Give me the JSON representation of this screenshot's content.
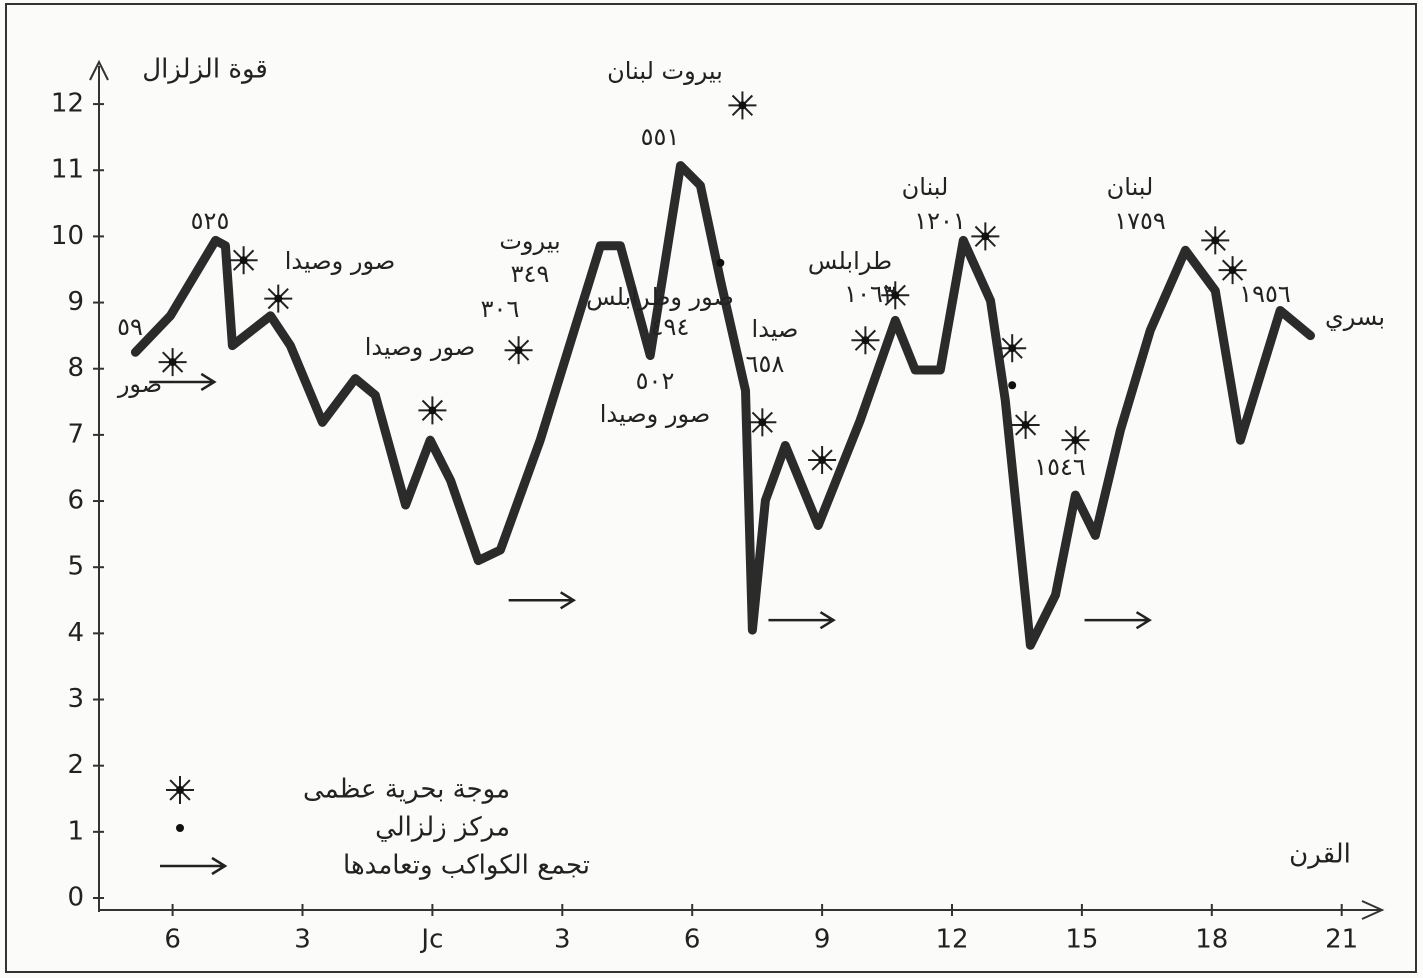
{
  "chart_data": {
    "type": "line",
    "ylabel": "قوة الزلزال",
    "xlabel": "القرن",
    "xlim": [
      -7.7,
      22
    ],
    "ylim": [
      0,
      12.5
    ],
    "xticks": [
      {
        "value": -6,
        "label": "6"
      },
      {
        "value": -3,
        "label": "3"
      },
      {
        "value": 0,
        "label": "Jc"
      },
      3,
      6,
      9,
      12,
      15,
      18,
      21
    ],
    "yticks": [
      0,
      1,
      2,
      3,
      4,
      5,
      6,
      7,
      8,
      9,
      10,
      11,
      12
    ],
    "color": "#2b2b2b",
    "x": [
      -6.86,
      -6.05,
      -5.01,
      -4.78,
      -4.62,
      -3.74,
      -3.28,
      -2.54,
      -1.78,
      -1.32,
      -0.62,
      -0.05,
      0.42,
      1.06,
      1.57,
      2.49,
      3.88,
      4.34,
      5.03,
      5.73,
      6.19,
      6.65,
      7.23,
      7.39,
      7.69,
      8.15,
      8.91,
      9.88,
      10.69,
      11.15,
      11.73,
      12.26,
      12.89,
      13.23,
      13.81,
      14.39,
      14.85,
      15.31,
      15.89,
      16.58,
      17.39,
      18.08,
      18.66,
      19.58,
      20.28
    ],
    "values": [
      8.25,
      8.8,
      9.94,
      9.86,
      8.35,
      8.8,
      8.35,
      7.19,
      7.85,
      7.6,
      5.94,
      6.92,
      6.31,
      5.1,
      5.26,
      6.92,
      9.86,
      9.86,
      8.2,
      11.07,
      10.77,
      9.34,
      7.67,
      4.05,
      6.01,
      6.84,
      5.63,
      7.22,
      8.73,
      7.98,
      7.98,
      9.94,
      9.03,
      7.52,
      3.82,
      4.58,
      6.09,
      5.48,
      7.07,
      8.58,
      9.79,
      9.18,
      6.92,
      8.88,
      8.5
    ],
    "markers": [
      {
        "name": "موجة بحرية عظمى",
        "marker": "star",
        "x": [
          -6.0,
          -4.36,
          -3.56,
          0.0,
          1.99,
          7.16,
          7.62,
          9.0,
          10.0,
          10.69,
          12.77,
          13.39,
          13.7,
          14.85,
          18.08,
          18.48
        ],
        "values": [
          8.1,
          9.64,
          9.06,
          7.37,
          8.28,
          11.98,
          7.19,
          6.62,
          8.43,
          9.11,
          10.0,
          8.31,
          7.15,
          6.92,
          9.94,
          9.49
        ]
      },
      {
        "name": "مركز زلزالي",
        "marker": "dot",
        "x": [
          6.65,
          13.39
        ],
        "values": [
          9.6,
          7.75
        ]
      },
      {
        "name": "تجمع الكواكب وتعامدها",
        "marker": "arrow",
        "x": [
          -5.8,
          2.5,
          8.5,
          15.8
        ],
        "values": [
          7.8,
          4.5,
          4.2,
          4.2
        ]
      }
    ],
    "legend": "bottom-left",
    "annotations": [
      "صور",
      "٥٩",
      "٥٢٥",
      "صور وصيدا",
      "صور وصيدا",
      "٣٠٦",
      "بيروت",
      "٣٤٩",
      "صور وطرابلس",
      "٤٩٤",
      "٥٠٢",
      "صور وصيدا",
      "بيروت لبنان",
      "٥٥١",
      "صيدا",
      "٦٥٨",
      "طرابلس",
      "١٠٦٣",
      "لبنان",
      "١٢٠١",
      "لبنان",
      "١٧٥٩",
      "١٥٤٦",
      "١٩٥٦",
      "بسري"
    ]
  }
}
